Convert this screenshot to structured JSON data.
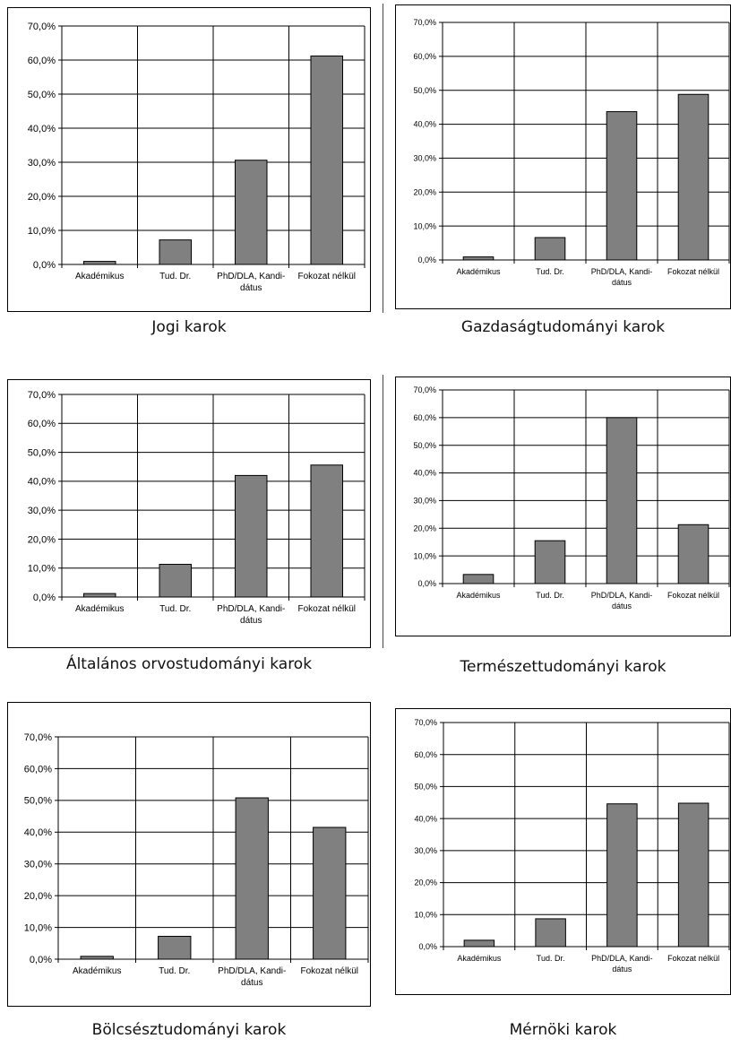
{
  "chart_data": [
    {
      "type": "bar",
      "title": "Jogi karok",
      "categories": [
        "Akadémikus",
        "Tud. Dr.",
        "PhD/DLA, Kandi-dátus",
        "Fokozat nélkül"
      ],
      "values": [
        0.9,
        7.2,
        30.6,
        61.2
      ],
      "ylim": [
        0,
        70
      ],
      "y_ticks": [
        "0,0%",
        "10,0%",
        "20,0%",
        "30,0%",
        "40,0%",
        "50,0%",
        "60,0%",
        "70,0%"
      ],
      "grid": true,
      "bar_color": "#808080"
    },
    {
      "type": "bar",
      "title": "Gazdaságtudományi karok",
      "categories": [
        "Akadémikus",
        "Tud. Dr.",
        "PhD/DLA, Kandi-dátus",
        "Fokozat nélkül"
      ],
      "values": [
        0.9,
        6.6,
        43.7,
        48.8
      ],
      "ylim": [
        0,
        70
      ],
      "y_ticks": [
        "0,0%",
        "10,0%",
        "20,0%",
        "30,0%",
        "40,0%",
        "50,0%",
        "60,0%",
        "70,0%"
      ],
      "grid": true,
      "bar_color": "#808080"
    },
    {
      "type": "bar",
      "title": "Általános orvostudományi karok",
      "categories": [
        "Akadémikus",
        "Tud. Dr.",
        "PhD/DLA, Kandi-dátus",
        "Fokozat nélkül"
      ],
      "values": [
        1.2,
        11.3,
        42.0,
        45.6
      ],
      "ylim": [
        0,
        70
      ],
      "y_ticks": [
        "0,0%",
        "10,0%",
        "20,0%",
        "30,0%",
        "40,0%",
        "50,0%",
        "60,0%",
        "70,0%"
      ],
      "grid": true,
      "bar_color": "#808080"
    },
    {
      "type": "bar",
      "title": "Természettudományi karok",
      "categories": [
        "Akadémikus",
        "Tud. Dr.",
        "PhD/DLA, Kandi-dátus",
        "Fokozat nélkül"
      ],
      "values": [
        3.3,
        15.5,
        60.0,
        21.3
      ],
      "ylim": [
        0,
        70
      ],
      "y_ticks": [
        "0,0%",
        "10,0%",
        "20,0%",
        "30,0%",
        "40,0%",
        "50,0%",
        "60,0%",
        "70,0%"
      ],
      "grid": true,
      "bar_color": "#808080"
    },
    {
      "type": "bar",
      "title": "Bölcsésztudományi karok",
      "categories": [
        "Akadémikus",
        "Tud. Dr.",
        "PhD/DLA, Kandi-dátus",
        "Fokozat nélkül"
      ],
      "values": [
        0.9,
        7.2,
        50.8,
        41.5
      ],
      "ylim": [
        0,
        70
      ],
      "y_ticks": [
        "0,0%",
        "10,0%",
        "20,0%",
        "30,0%",
        "40,0%",
        "50,0%",
        "60,0%",
        "70,0%"
      ],
      "grid": true,
      "bar_color": "#808080"
    },
    {
      "type": "bar",
      "title": "Mérnöki karok",
      "categories": [
        "Akadémikus",
        "Tud. Dr.",
        "PhD/DLA, Kandi-dátus",
        "Fokozat nélkül"
      ],
      "values": [
        2.0,
        8.7,
        44.6,
        44.8
      ],
      "ylim": [
        0,
        70
      ],
      "y_ticks": [
        "0,0%",
        "10,0%",
        "20,0%",
        "30,0%",
        "40,0%",
        "50,0%",
        "60,0%",
        "70,0%"
      ],
      "grid": true,
      "bar_color": "#808080"
    }
  ]
}
